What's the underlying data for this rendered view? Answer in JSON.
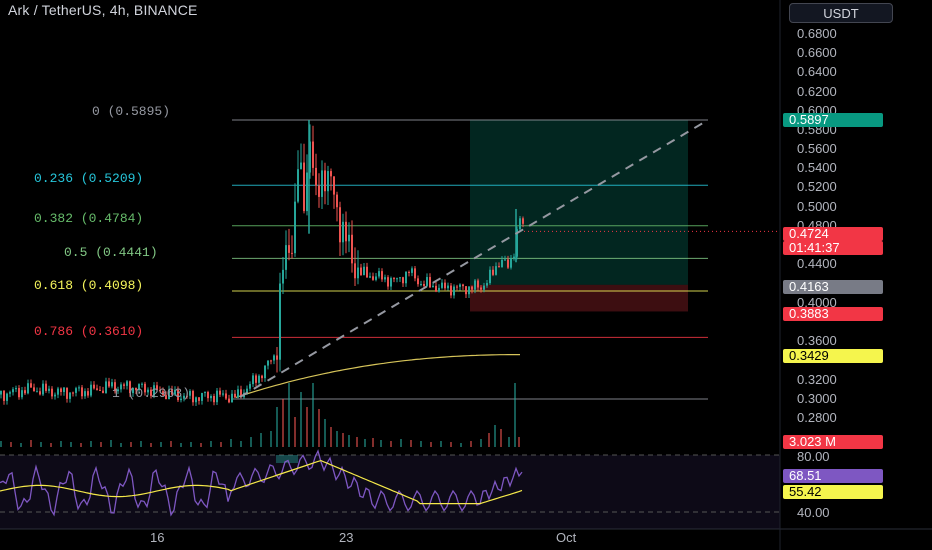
{
  "header": {
    "title": "Ark / TetherUS, 4h, BINANCE",
    "currency": "USDT"
  },
  "fib_levels": [
    {
      "label": "0 (0.5895)",
      "color": "#9598a1"
    },
    {
      "label": "0.236 (0.5209)",
      "color": "#26c6da"
    },
    {
      "label": "0.382 (0.4784)",
      "color": "#66bb6a"
    },
    {
      "label": "0.5 (0.4441)",
      "color": "#81c784"
    },
    {
      "label": "0.618 (0.4098)",
      "color": "#f5f55c"
    },
    {
      "label": "0.786 (0.3610)",
      "color": "#f23645"
    },
    {
      "label": "1 (0.2963)",
      "color": "#9598a1"
    }
  ],
  "price_axis": [
    "0.6800",
    "0.6600",
    "0.6400",
    "0.6200",
    "0.6000",
    "0.5800",
    "0.5600",
    "0.5400",
    "0.5200",
    "0.5000",
    "0.4800",
    "0.4400",
    "0.4000",
    "0.3600",
    "0.3200",
    "0.3000",
    "0.2800"
  ],
  "price_tags": {
    "target": "0.5897",
    "current": "0.4724",
    "countdown": "01:41:37",
    "entry": "0.4163",
    "stop": "0.3883",
    "ma": "0.3429",
    "volume": "3.023 M"
  },
  "time_axis": [
    "16",
    "23",
    "Oct"
  ],
  "rsi": {
    "ticks": [
      "80.00",
      "40.00"
    ],
    "value": "68.51",
    "ma_value": "55.42"
  },
  "colors": {
    "up": "#26a69a",
    "down": "#ef5350",
    "rsi": "#7e57c2",
    "rsi_ma": "#f5e94a",
    "ma": "#d6c45a"
  },
  "chart_data": {
    "type": "candlestick",
    "symbol": "Ark / TetherUS",
    "interval": "4h",
    "exchange": "BINANCE",
    "close_path": [
      {
        "x": 0,
        "price": 0.301
      },
      {
        "x": 30,
        "price": 0.307
      },
      {
        "x": 60,
        "price": 0.303
      },
      {
        "x": 90,
        "price": 0.305
      },
      {
        "x": 110,
        "price": 0.31
      },
      {
        "x": 140,
        "price": 0.308
      },
      {
        "x": 165,
        "price": 0.302
      },
      {
        "x": 190,
        "price": 0.298
      },
      {
        "x": 215,
        "price": 0.3
      },
      {
        "x": 235,
        "price": 0.298
      },
      {
        "x": 250,
        "price": 0.312
      },
      {
        "x": 262,
        "price": 0.325
      },
      {
        "x": 275,
        "price": 0.345
      },
      {
        "x": 280,
        "price": 0.42
      },
      {
        "x": 285,
        "price": 0.445
      },
      {
        "x": 292,
        "price": 0.47
      },
      {
        "x": 297,
        "price": 0.54
      },
      {
        "x": 303,
        "price": 0.505
      },
      {
        "x": 309,
        "price": 0.575
      },
      {
        "x": 315,
        "price": 0.5
      },
      {
        "x": 322,
        "price": 0.54
      },
      {
        "x": 330,
        "price": 0.52
      },
      {
        "x": 340,
        "price": 0.48
      },
      {
        "x": 350,
        "price": 0.445
      },
      {
        "x": 360,
        "price": 0.428
      },
      {
        "x": 375,
        "price": 0.425
      },
      {
        "x": 395,
        "price": 0.42
      },
      {
        "x": 408,
        "price": 0.43
      },
      {
        "x": 420,
        "price": 0.418
      },
      {
        "x": 440,
        "price": 0.413
      },
      {
        "x": 460,
        "price": 0.413
      },
      {
        "x": 480,
        "price": 0.414
      },
      {
        "x": 492,
        "price": 0.428
      },
      {
        "x": 500,
        "price": 0.445
      },
      {
        "x": 508,
        "price": 0.432
      },
      {
        "x": 514,
        "price": 0.458
      },
      {
        "x": 518,
        "price": 0.49
      },
      {
        "x": 523,
        "price": 0.4724
      }
    ],
    "fibonacci": [
      {
        "ratio": 0,
        "price": 0.5895
      },
      {
        "ratio": 0.236,
        "price": 0.5209
      },
      {
        "ratio": 0.382,
        "price": 0.4784
      },
      {
        "ratio": 0.5,
        "price": 0.4441
      },
      {
        "ratio": 0.618,
        "price": 0.4098
      },
      {
        "ratio": 0.786,
        "price": 0.361
      },
      {
        "ratio": 1,
        "price": 0.2963
      }
    ],
    "position": {
      "entry": 0.4163,
      "target": 0.5897,
      "stop": 0.3883
    },
    "current_price": 0.4724,
    "ma_last": 0.3429,
    "volume_last": "3.023 M",
    "rsi_last": 68.51,
    "rsi_ma_last": 55.42,
    "ylim": [
      0.28,
      0.69
    ]
  }
}
